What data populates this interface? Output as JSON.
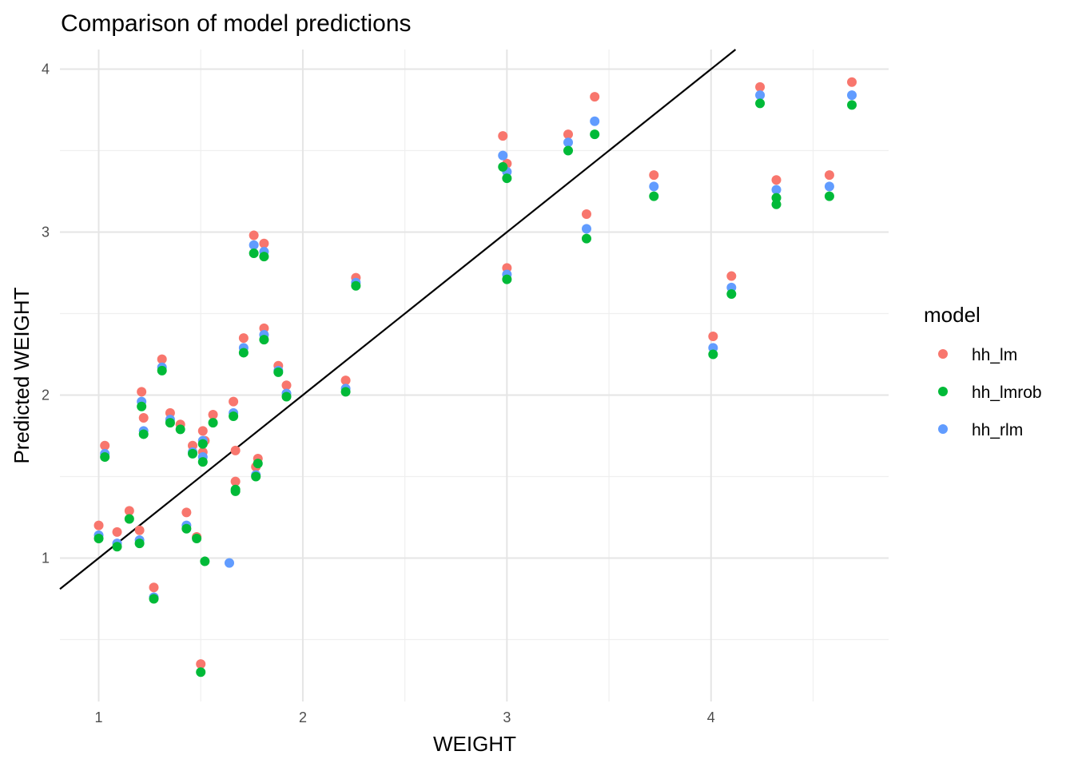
{
  "chart_data": {
    "type": "scatter",
    "title": "Comparison of model predictions",
    "xlabel": "WEIGHT",
    "ylabel": "Predicted WEIGHT",
    "xlim": [
      0.81,
      4.87
    ],
    "ylim": [
      0.12,
      4.12
    ],
    "xticks": [
      1,
      2,
      3,
      4
    ],
    "yticks": [
      1,
      2,
      3,
      4
    ],
    "grid": true,
    "legend_title": "model",
    "legend_position": "right",
    "reference_line": {
      "intercept": 0,
      "slope": 1,
      "color": "#000000"
    },
    "series": [
      {
        "name": "hh_lm",
        "color": "#F8766D",
        "x": [
          1.0,
          1.03,
          1.09,
          1.15,
          1.2,
          1.21,
          1.22,
          1.27,
          1.31,
          1.35,
          1.4,
          1.43,
          1.46,
          1.48,
          1.5,
          1.51,
          1.51,
          1.52,
          1.56,
          1.66,
          1.67,
          1.67,
          1.71,
          1.76,
          1.77,
          1.78,
          1.81,
          1.81,
          1.88,
          1.92,
          2.21,
          2.26,
          2.98,
          3.0,
          3.0,
          3.3,
          3.39,
          3.43,
          3.72,
          4.01,
          4.1,
          4.24,
          4.32,
          4.58,
          4.69
        ],
        "y": [
          1.2,
          1.69,
          1.16,
          1.29,
          1.17,
          2.02,
          1.86,
          0.82,
          2.22,
          1.89,
          1.82,
          1.28,
          1.69,
          1.13,
          0.35,
          1.78,
          1.65,
          1.72,
          1.88,
          1.96,
          1.47,
          1.66,
          2.35,
          2.98,
          1.56,
          1.61,
          2.93,
          2.41,
          2.18,
          2.06,
          2.09,
          2.72,
          3.59,
          3.42,
          2.78,
          3.6,
          3.11,
          3.83,
          3.35,
          2.36,
          2.73,
          3.89,
          3.32,
          3.35,
          3.92
        ]
      },
      {
        "name": "hh_lmrob",
        "color": "#00BA38",
        "x": [
          1.0,
          1.03,
          1.09,
          1.15,
          1.2,
          1.21,
          1.22,
          1.27,
          1.31,
          1.35,
          1.4,
          1.43,
          1.46,
          1.48,
          1.5,
          1.51,
          1.51,
          1.52,
          1.56,
          1.66,
          1.67,
          1.67,
          1.71,
          1.76,
          1.77,
          1.78,
          1.81,
          1.81,
          1.88,
          1.92,
          2.21,
          2.26,
          2.98,
          3.0,
          3.0,
          3.3,
          3.39,
          3.43,
          3.72,
          4.01,
          4.1,
          4.24,
          4.32,
          4.32,
          4.58,
          4.69
        ],
        "y": [
          1.12,
          1.62,
          1.07,
          1.24,
          1.09,
          1.93,
          1.76,
          0.75,
          2.15,
          1.83,
          1.79,
          1.18,
          1.64,
          1.12,
          0.3,
          1.7,
          1.59,
          0.98,
          1.83,
          1.87,
          1.42,
          1.41,
          2.26,
          2.87,
          1.5,
          1.58,
          2.85,
          2.34,
          2.14,
          1.99,
          2.02,
          2.67,
          3.4,
          3.33,
          2.71,
          3.5,
          2.96,
          3.6,
          3.22,
          2.25,
          2.62,
          3.79,
          3.21,
          3.17,
          3.22,
          3.78
        ]
      },
      {
        "name": "hh_rlm",
        "color": "#619CFF",
        "x": [
          1.0,
          1.03,
          1.09,
          1.2,
          1.21,
          1.22,
          1.27,
          1.31,
          1.35,
          1.43,
          1.46,
          1.51,
          1.51,
          1.64,
          1.66,
          1.71,
          1.76,
          1.77,
          1.81,
          1.81,
          1.88,
          1.92,
          2.21,
          2.26,
          2.98,
          3.0,
          3.0,
          3.3,
          3.39,
          3.43,
          3.72,
          4.01,
          4.1,
          4.24,
          4.32,
          4.58,
          4.69
        ],
        "y": [
          1.14,
          1.64,
          1.09,
          1.11,
          1.96,
          1.78,
          0.76,
          2.17,
          1.85,
          1.2,
          1.65,
          1.62,
          1.72,
          0.97,
          1.89,
          2.29,
          2.92,
          1.51,
          2.88,
          2.37,
          2.15,
          2.01,
          2.04,
          2.69,
          3.47,
          3.37,
          2.74,
          3.55,
          3.02,
          3.68,
          3.28,
          2.29,
          2.66,
          3.84,
          3.26,
          3.28,
          3.84
        ]
      }
    ]
  }
}
